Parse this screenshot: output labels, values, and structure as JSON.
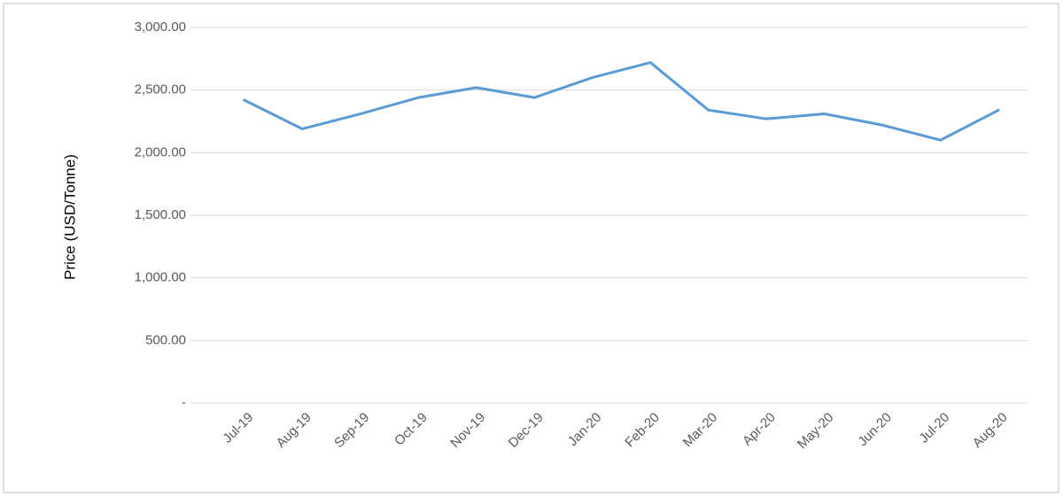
{
  "chart_data": {
    "type": "line",
    "y_label": "Price (USD/Tonne)",
    "categories": [
      "Jul-19",
      "Aug-19",
      "Sep-19",
      "Oct-19",
      "Nov-19",
      "Dec-19",
      "Jan-20",
      "Feb-20",
      "Mar-20",
      "Apr-20",
      "May-20",
      "Jun-20",
      "Jul-20",
      "Aug-20"
    ],
    "values": [
      2420,
      2190,
      2310,
      2440,
      2520,
      2440,
      2600,
      2720,
      2340,
      2270,
      2310,
      2220,
      2100,
      2340
    ],
    "color": "#5b9bd5",
    "ylim": [
      0,
      3000
    ],
    "yticks": [
      {
        "value": 0,
        "label": "-"
      },
      {
        "value": 500,
        "label": "500.00"
      },
      {
        "value": 1000,
        "label": "1,000.00"
      },
      {
        "value": 1500,
        "label": "1,500.00"
      },
      {
        "value": 2000,
        "label": "2,000.00"
      },
      {
        "value": 2500,
        "label": "2,500.00"
      },
      {
        "value": 3000,
        "label": "3,000.00"
      }
    ],
    "grid": true
  }
}
